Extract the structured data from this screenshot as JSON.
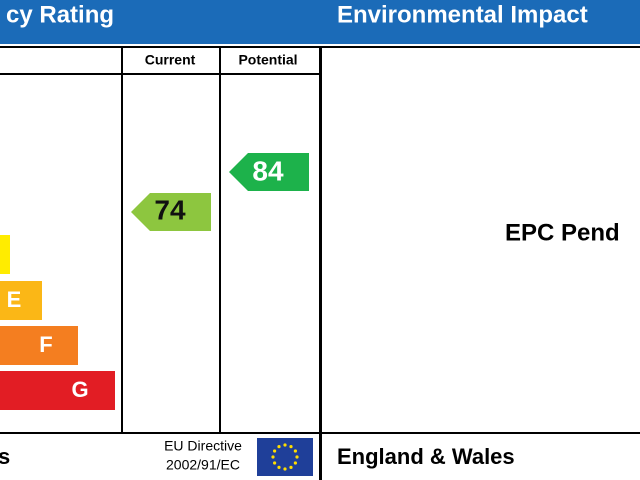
{
  "header": {
    "left_title": "cy Rating",
    "right_title": "Environmental Impact"
  },
  "energy": {
    "columns": [
      "Current",
      "Potential"
    ],
    "bands": [
      "E",
      "F",
      "G"
    ],
    "current": "74",
    "potential": "84",
    "footer_left": "s",
    "directive_line1": "EU Directive",
    "directive_line2": "2002/91/EC"
  },
  "environmental": {
    "status": "EPC Pend",
    "footer": "England & Wales"
  }
}
